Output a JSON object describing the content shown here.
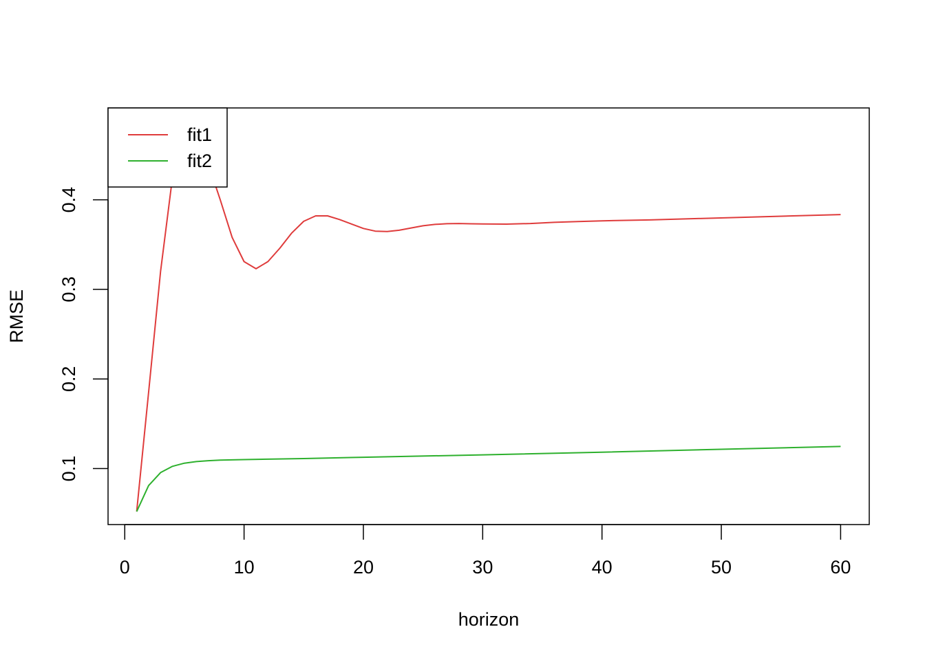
{
  "chart_data": {
    "type": "line",
    "title": "",
    "xlabel": "horizon",
    "ylabel": "RMSE",
    "xlim": [
      -1.4,
      62.4
    ],
    "ylim": [
      0.0375,
      0.5025
    ],
    "xticks": [
      0,
      10,
      20,
      30,
      40,
      50,
      60
    ],
    "xtick_labels": [
      "0",
      "10",
      "20",
      "30",
      "40",
      "50",
      "60"
    ],
    "yticks": [
      0.1,
      0.2,
      0.3,
      0.4
    ],
    "ytick_labels": [
      "0.1",
      "0.2",
      "0.3",
      "0.4"
    ],
    "grid": false,
    "legend_position": "top-left",
    "series": [
      {
        "name": "fit1",
        "color": "#DF3B3B",
        "x": [
          1,
          2,
          3,
          4,
          5,
          6,
          7,
          8,
          9,
          10,
          11,
          12,
          13,
          14,
          15,
          16,
          17,
          18,
          19,
          20,
          21,
          22,
          23,
          24,
          25,
          26,
          27,
          28,
          29,
          30,
          32,
          34,
          36,
          38,
          40,
          44,
          48,
          52,
          56,
          60
        ],
        "y": [
          0.052,
          0.185,
          0.32,
          0.425,
          0.47,
          0.46,
          0.44,
          0.4,
          0.358,
          0.331,
          0.323,
          0.331,
          0.346,
          0.363,
          0.376,
          0.382,
          0.382,
          0.378,
          0.373,
          0.368,
          0.365,
          0.3645,
          0.366,
          0.3685,
          0.371,
          0.3725,
          0.3733,
          0.3735,
          0.3732,
          0.373,
          0.3728,
          0.3735,
          0.3748,
          0.3757,
          0.3765,
          0.3775,
          0.379,
          0.3805,
          0.382,
          0.3835
        ]
      },
      {
        "name": "fit2",
        "color": "#2DB02D",
        "x": [
          1,
          2,
          3,
          4,
          5,
          6,
          7,
          8,
          10,
          15,
          20,
          30,
          40,
          50,
          60
        ],
        "y": [
          0.052,
          0.081,
          0.0955,
          0.1025,
          0.106,
          0.1078,
          0.1088,
          0.1094,
          0.11,
          0.1112,
          0.1126,
          0.1153,
          0.1183,
          0.1215,
          0.1247
        ]
      }
    ]
  }
}
